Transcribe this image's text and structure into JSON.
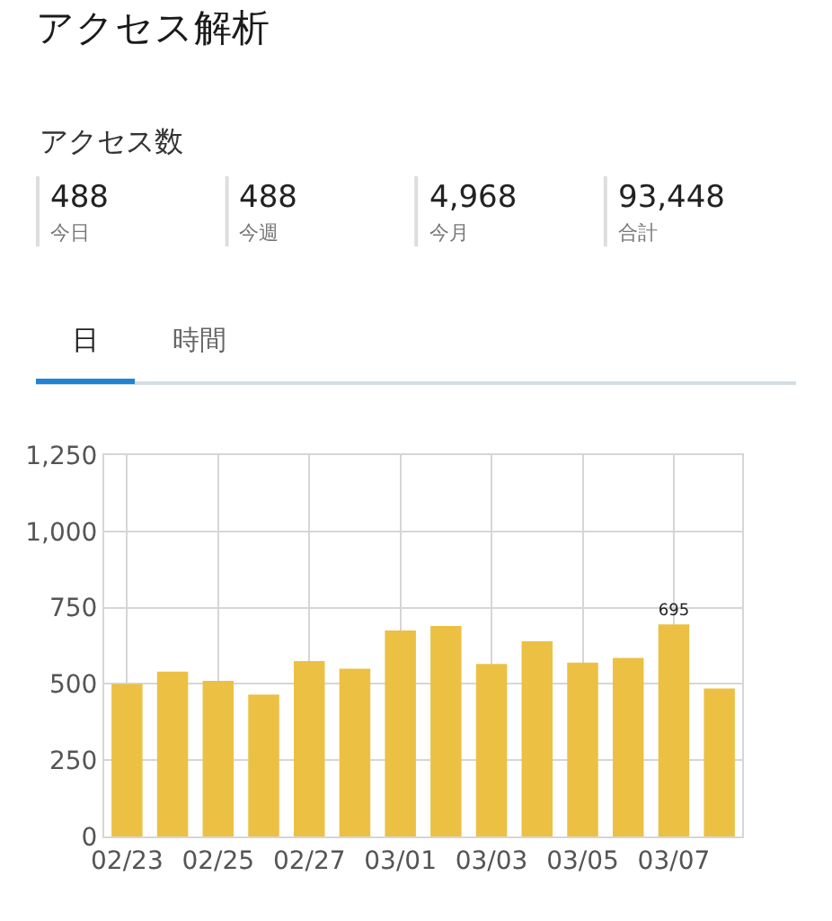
{
  "chart_data": {
    "type": "bar",
    "title": "アクセス解析",
    "subtitle": "アクセス数",
    "annotations": [
      "488",
      "今日",
      "488",
      "今週",
      "4,968",
      "今月",
      "93,448",
      "合計",
      "日",
      "時間"
    ],
    "categories": [
      "02/23",
      null,
      "02/25",
      null,
      "02/27",
      null,
      "03/01",
      null,
      "03/03",
      null,
      "03/05",
      null,
      "03/07",
      null
    ],
    "values": [
      500,
      540,
      510,
      465,
      575,
      550,
      675,
      690,
      565,
      640,
      570,
      585,
      695,
      485
    ],
    "value_labels": [
      null,
      null,
      null,
      null,
      null,
      null,
      null,
      null,
      null,
      null,
      null,
      null,
      "695",
      null
    ],
    "color": "#ecc043",
    "ylim": [
      0,
      1250
    ],
    "yticks": [
      0,
      250,
      500,
      750,
      {
        "value": 1000,
        "label": "1,000"
      },
      {
        "value": 1250,
        "label": "1,250"
      }
    ],
    "grid": true
  }
}
